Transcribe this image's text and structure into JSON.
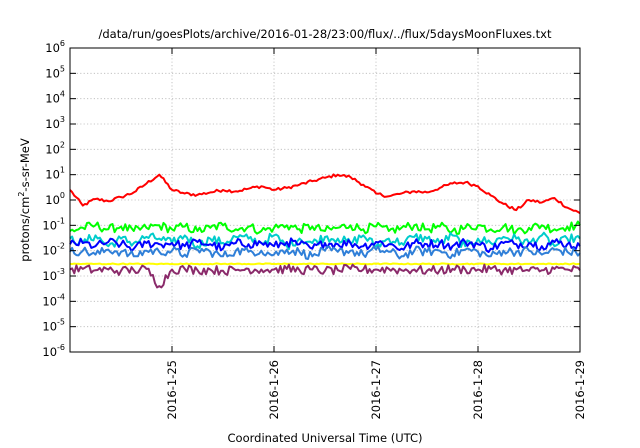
{
  "chart_data": {
    "type": "line",
    "title": "/data/run/goesPlots/archive/2016-01-28/23:00/flux/../flux/5daysMoonFluxes.txt",
    "xlabel": "Coordinated Universal Time (UTC)",
    "ylabel_parts": [
      "protons/cm",
      "2",
      "-s-sr-MeV"
    ],
    "yscale": "log",
    "ylim": [
      1e-06,
      1000000.0
    ],
    "xlim": [
      "2016-01-24",
      "2016-01-29"
    ],
    "grid": true,
    "x_ticks": [
      "2016-1-25",
      "2016-1-26",
      "2016-1-27",
      "2016-1-28",
      "2016-1-29"
    ],
    "y_ticks": [
      {
        "base": "10",
        "exp": "6"
      },
      {
        "base": "10",
        "exp": "5"
      },
      {
        "base": "10",
        "exp": "4"
      },
      {
        "base": "10",
        "exp": "3"
      },
      {
        "base": "10",
        "exp": "2"
      },
      {
        "base": "10",
        "exp": "1"
      },
      {
        "base": "10",
        "exp": "0"
      },
      {
        "base": "10",
        "exp": "-1"
      },
      {
        "base": "10",
        "exp": "-2"
      },
      {
        "base": "10",
        "exp": "-3"
      },
      {
        "base": "10",
        "exp": "-4"
      },
      {
        "base": "10",
        "exp": "-5"
      },
      {
        "base": "10",
        "exp": "-6"
      }
    ],
    "x_dates": [
      "2016-01-24",
      "2016-01-24",
      "2016-01-24",
      "2016-01-24",
      "2016-01-24",
      "2016-01-24",
      "2016-01-24",
      "2016-01-24",
      "2016-01-25",
      "2016-01-25",
      "2016-01-25",
      "2016-01-25",
      "2016-01-25",
      "2016-01-25",
      "2016-01-25",
      "2016-01-25",
      "2016-01-26",
      "2016-01-26",
      "2016-01-26",
      "2016-01-26",
      "2016-01-26",
      "2016-01-26",
      "2016-01-26",
      "2016-01-26",
      "2016-01-27",
      "2016-01-27",
      "2016-01-27",
      "2016-01-27",
      "2016-01-27",
      "2016-01-27",
      "2016-01-27",
      "2016-01-27",
      "2016-01-28",
      "2016-01-28",
      "2016-01-28",
      "2016-01-28",
      "2016-01-28",
      "2016-01-28",
      "2016-01-28",
      "2016-01-28",
      "2016-01-29"
    ],
    "x_hours": [
      0,
      3,
      6,
      9,
      12,
      15,
      18,
      21,
      0,
      3,
      6,
      9,
      12,
      15,
      18,
      21,
      0,
      3,
      6,
      9,
      12,
      15,
      18,
      21,
      0,
      3,
      6,
      9,
      12,
      15,
      18,
      21,
      0,
      3,
      6,
      9,
      12,
      15,
      18,
      21,
      0
    ],
    "series": [
      {
        "color": "#ff0000",
        "values": [
          2.5,
          0.6,
          1.1,
          0.9,
          1.3,
          2.0,
          4.5,
          10,
          2.5,
          1.8,
          1.6,
          2.0,
          2.5,
          2.2,
          2.8,
          3.5,
          2.5,
          3.0,
          4.0,
          5.5,
          7.5,
          10,
          8,
          4,
          1.8,
          1.4,
          1.8,
          2.2,
          2.0,
          3.0,
          4.5,
          5.0,
          3.5,
          1.5,
          0.7,
          0.4,
          1.0,
          0.8,
          1.2,
          0.5,
          0.3
        ]
      },
      {
        "color": "#00ff00",
        "values": [
          0.06,
          0.08,
          0.1,
          0.07,
          0.09,
          0.06,
          0.08,
          0.1,
          0.07,
          0.09,
          0.06,
          0.08,
          0.1,
          0.07,
          0.09,
          0.06,
          0.08,
          0.1,
          0.07,
          0.09,
          0.06,
          0.08,
          0.1,
          0.07,
          0.09,
          0.06,
          0.08,
          0.1,
          0.07,
          0.09,
          0.06,
          0.08,
          0.1,
          0.07,
          0.09,
          0.06,
          0.08,
          0.1,
          0.07,
          0.09,
          0.1
        ]
      },
      {
        "color": "#00cccc",
        "values": [
          0.03,
          0.02,
          0.04,
          0.015,
          0.03,
          0.02,
          0.035,
          0.03,
          0.02,
          0.04,
          0.015,
          0.03,
          0.02,
          0.035,
          0.03,
          0.02,
          0.04,
          0.015,
          0.03,
          0.02,
          0.035,
          0.03,
          0.02,
          0.04,
          0.015,
          0.03,
          0.02,
          0.035,
          0.03,
          0.02,
          0.04,
          0.015,
          0.03,
          0.02,
          0.035,
          0.03,
          0.02,
          0.04,
          0.015,
          0.03,
          0.03
        ]
      },
      {
        "color": "#0000ff",
        "values": [
          0.018,
          0.02,
          0.015,
          0.022,
          0.018,
          0.012,
          0.02,
          0.018,
          0.02,
          0.015,
          0.022,
          0.018,
          0.012,
          0.02,
          0.018,
          0.02,
          0.015,
          0.022,
          0.018,
          0.012,
          0.02,
          0.018,
          0.02,
          0.015,
          0.022,
          0.018,
          0.012,
          0.02,
          0.018,
          0.02,
          0.015,
          0.022,
          0.018,
          0.012,
          0.02,
          0.018,
          0.02,
          0.015,
          0.022,
          0.018,
          0.015
        ]
      },
      {
        "color": "#2f7fd8",
        "values": [
          0.009,
          0.01,
          0.007,
          0.011,
          0.009,
          0.006,
          0.01,
          0.009,
          0.01,
          0.007,
          0.011,
          0.009,
          0.006,
          0.01,
          0.009,
          0.01,
          0.007,
          0.011,
          0.009,
          0.006,
          0.01,
          0.009,
          0.01,
          0.007,
          0.011,
          0.009,
          0.006,
          0.01,
          0.009,
          0.01,
          0.007,
          0.011,
          0.009,
          0.006,
          0.01,
          0.009,
          0.01,
          0.007,
          0.011,
          0.009,
          0.008
        ]
      },
      {
        "color": "#ffff00",
        "values": [
          0.003,
          0.003,
          0.003,
          0.003,
          0.003,
          0.003,
          0.003,
          0.003,
          0.003,
          0.003,
          0.003,
          0.003,
          0.003,
          0.003,
          0.003,
          0.003,
          0.003,
          0.003,
          0.003,
          0.003,
          0.003,
          0.003,
          0.003,
          0.003,
          0.003,
          0.003,
          0.003,
          0.003,
          0.003,
          0.003,
          0.003,
          0.003,
          0.003,
          0.003,
          0.003,
          0.003,
          0.003,
          0.003,
          0.003,
          0.003,
          0.003
        ]
      },
      {
        "color": "#8a2a6a",
        "values": [
          0.0018,
          0.0019,
          0.0017,
          0.0018,
          0.0016,
          0.0017,
          0.0019,
          0.0004,
          0.0018,
          0.0019,
          0.0017,
          0.0018,
          0.0016,
          0.0017,
          0.0019,
          0.0018,
          0.0018,
          0.0019,
          0.0017,
          0.0018,
          0.0016,
          0.0017,
          0.0019,
          0.0018,
          0.0018,
          0.0019,
          0.0017,
          0.0018,
          0.0016,
          0.0017,
          0.0019,
          0.0018,
          0.0018,
          0.0019,
          0.0017,
          0.0018,
          0.0016,
          0.0017,
          0.0019,
          0.0018,
          0.0017
        ]
      }
    ]
  }
}
